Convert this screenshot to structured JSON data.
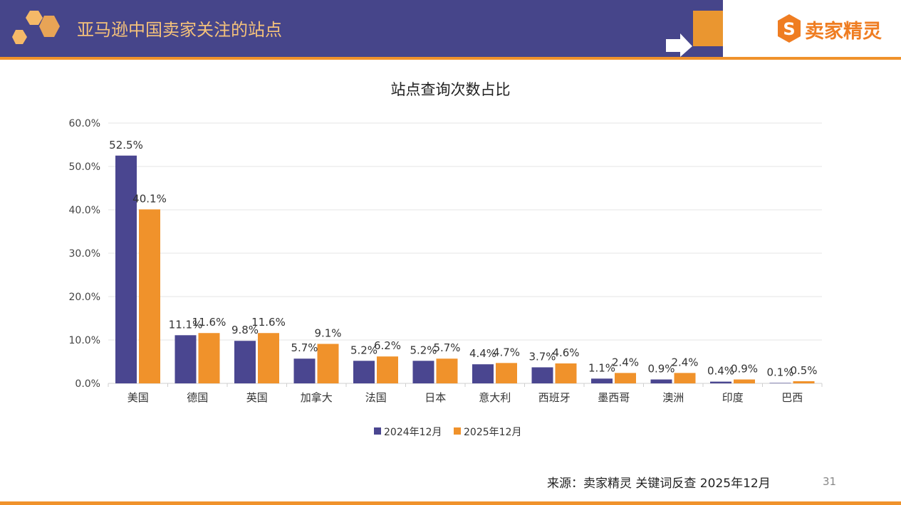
{
  "header": {
    "title": "亚马逊中国卖家关注的站点",
    "logo_text": "卖家精灵"
  },
  "footer": {
    "source": "来源：卖家精灵 关键词反查 2025年12月",
    "page_number": "31"
  },
  "colors": {
    "header_bg": "#46458a",
    "accent": "#f0922b",
    "series_2024": "#4a4690",
    "series_2025": "#f0922b"
  },
  "chart_data": {
    "type": "bar",
    "title": "站点查询次数占比",
    "categories": [
      "美国",
      "德国",
      "英国",
      "加拿大",
      "法国",
      "日本",
      "意大利",
      "西班牙",
      "墨西哥",
      "澳洲",
      "印度",
      "巴西"
    ],
    "series": [
      {
        "name": "2024年12月",
        "values": [
          52.5,
          11.1,
          9.8,
          5.7,
          5.2,
          5.2,
          4.4,
          3.7,
          1.1,
          0.9,
          0.4,
          0.1
        ]
      },
      {
        "name": "2025年12月",
        "values": [
          40.1,
          11.6,
          11.6,
          9.1,
          6.2,
          5.7,
          4.7,
          4.6,
          2.4,
          2.4,
          0.9,
          0.5
        ]
      }
    ],
    "yticks": [
      "0.0%",
      "10.0%",
      "20.0%",
      "30.0%",
      "40.0%",
      "50.0%",
      "60.0%"
    ],
    "ylim": [
      0,
      60
    ],
    "grid": true,
    "legend": "bottom"
  }
}
